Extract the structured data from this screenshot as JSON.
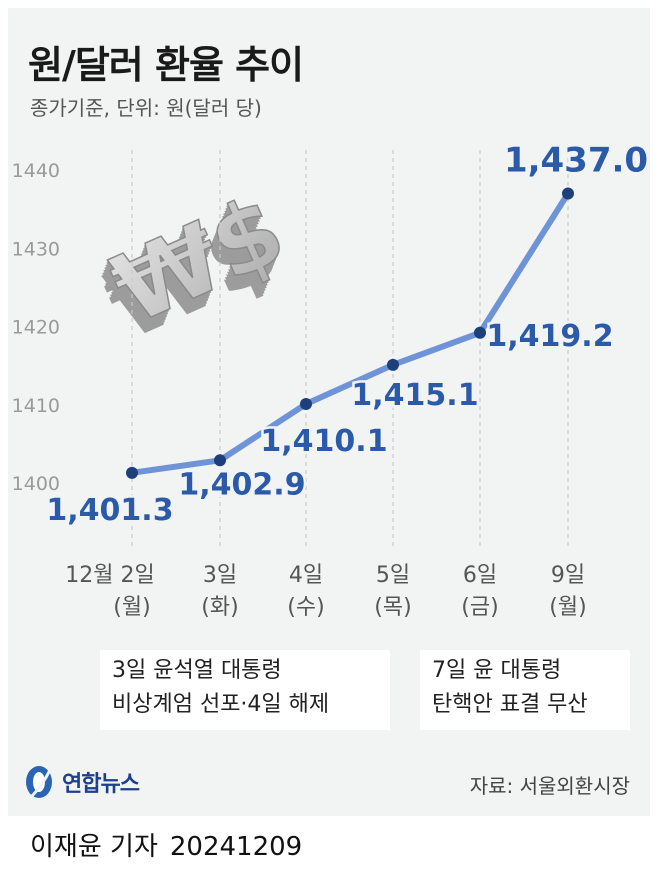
{
  "header": {
    "title": "원/달러 환율 추이",
    "subtitle": "종가기준, 단위: 원(달러 당)"
  },
  "chart_data": {
    "type": "line",
    "title": "원/달러 환율 추이",
    "subtitle": "종가기준, 단위: 원(달러 당)",
    "categories": [
      "12월 2일",
      "3일",
      "4일",
      "5일",
      "6일",
      "9일"
    ],
    "weekdays": [
      "(월)",
      "(화)",
      "(수)",
      "(목)",
      "(금)",
      "(월)"
    ],
    "values": [
      1401.3,
      1402.9,
      1410.1,
      1415.1,
      1419.2,
      1437.0
    ],
    "data_labels": [
      "1,401.3",
      "1,402.9",
      "1,410.1",
      "1,415.1",
      "1,419.2",
      "1,437.0"
    ],
    "y_ticks": [
      "1400",
      "1410",
      "1420",
      "1430",
      "1440"
    ],
    "ylim": [
      1400,
      1440
    ],
    "grid": "vertical-dashed",
    "line_color": "#6e93d6",
    "point_color": "#1d3f7a",
    "label_color": "#2a5aa8"
  },
  "annotations": [
    {
      "text_line1": "3일 윤석열 대통령",
      "text_line2": "비상계엄 선포·4일 해제"
    },
    {
      "text_line1": "7일 윤 대통령",
      "text_line2": "탄핵안 표결 무산"
    }
  ],
  "decoration": {
    "symbols": "₩$"
  },
  "footer": {
    "logo": "연합뉴스",
    "source": "자료: 서울외환시장",
    "byline_name": "이재윤 기자",
    "byline_date": "20241209"
  }
}
